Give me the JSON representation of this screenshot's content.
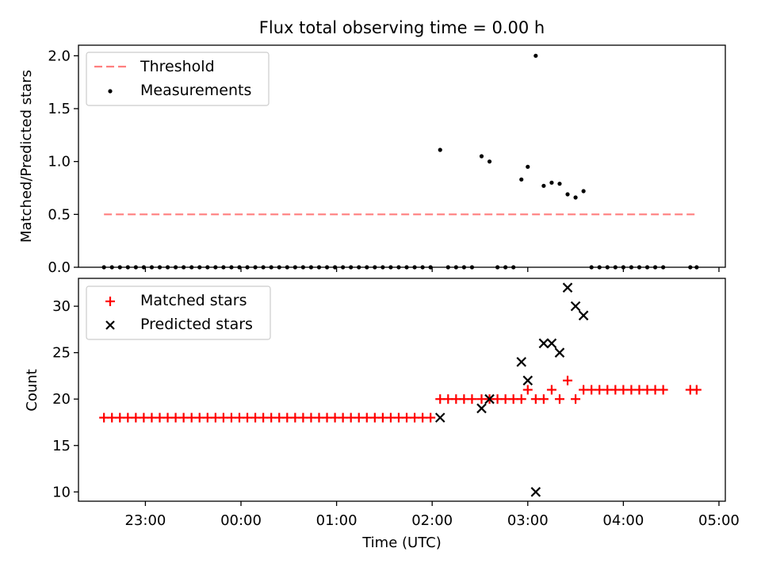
{
  "chart_data": [
    {
      "type": "scatter",
      "panel": "top",
      "title": "Flux total observing time = 0.00 h",
      "xlabel": "",
      "ylabel": "Matched/Predicted stars",
      "ylim": [
        0,
        2.1
      ],
      "yticks": [
        0.0,
        0.5,
        1.0,
        1.5,
        2.0
      ],
      "ytick_labels": [
        "0.0",
        "0.5",
        "1.0",
        "1.5",
        "2.0"
      ],
      "legend": {
        "position": "top-left",
        "entries": [
          "Threshold",
          "Measurements"
        ]
      },
      "threshold": {
        "name": "Threshold",
        "value": 0.5,
        "x_range": [
          "22:34",
          "04:46"
        ],
        "color": "#ff7f7f"
      },
      "series": [
        {
          "name": "Measurements",
          "color": "#000000",
          "points": [
            [
              "22:34",
              0
            ],
            [
              "22:39",
              0
            ],
            [
              "22:44",
              0
            ],
            [
              "22:49",
              0
            ],
            [
              "22:54",
              0
            ],
            [
              "22:59",
              0
            ],
            [
              "23:04",
              0
            ],
            [
              "23:09",
              0
            ],
            [
              "23:14",
              0
            ],
            [
              "23:19",
              0
            ],
            [
              "23:24",
              0
            ],
            [
              "23:29",
              0
            ],
            [
              "23:34",
              0
            ],
            [
              "23:39",
              0
            ],
            [
              "23:44",
              0
            ],
            [
              "23:49",
              0
            ],
            [
              "23:54",
              0
            ],
            [
              "23:59",
              0
            ],
            [
              "00:04",
              0
            ],
            [
              "00:09",
              0
            ],
            [
              "00:14",
              0
            ],
            [
              "00:19",
              0
            ],
            [
              "00:24",
              0
            ],
            [
              "00:29",
              0
            ],
            [
              "00:34",
              0
            ],
            [
              "00:39",
              0
            ],
            [
              "00:44",
              0
            ],
            [
              "00:49",
              0
            ],
            [
              "00:54",
              0
            ],
            [
              "00:59",
              0
            ],
            [
              "01:04",
              0
            ],
            [
              "01:09",
              0
            ],
            [
              "01:14",
              0
            ],
            [
              "01:19",
              0
            ],
            [
              "01:24",
              0
            ],
            [
              "01:29",
              0
            ],
            [
              "01:34",
              0
            ],
            [
              "01:39",
              0
            ],
            [
              "01:44",
              0
            ],
            [
              "01:49",
              0
            ],
            [
              "01:54",
              0
            ],
            [
              "01:59",
              0
            ],
            [
              "02:05",
              1.11
            ],
            [
              "02:10",
              0
            ],
            [
              "02:15",
              0
            ],
            [
              "02:20",
              0
            ],
            [
              "02:25",
              0
            ],
            [
              "02:31",
              1.05
            ],
            [
              "02:36",
              1.0
            ],
            [
              "02:41",
              0
            ],
            [
              "02:46",
              0
            ],
            [
              "02:51",
              0
            ],
            [
              "02:56",
              0.83
            ],
            [
              "03:00",
              0.95
            ],
            [
              "03:05",
              2.0
            ],
            [
              "03:10",
              0.77
            ],
            [
              "03:15",
              0.8
            ],
            [
              "03:20",
              0.79
            ],
            [
              "03:25",
              0.69
            ],
            [
              "03:30",
              0.66
            ],
            [
              "03:35",
              0.72
            ],
            [
              "03:40",
              0
            ],
            [
              "03:45",
              0
            ],
            [
              "03:50",
              0
            ],
            [
              "03:55",
              0
            ],
            [
              "04:00",
              0
            ],
            [
              "04:05",
              0
            ],
            [
              "04:10",
              0
            ],
            [
              "04:15",
              0
            ],
            [
              "04:20",
              0
            ],
            [
              "04:25",
              0
            ],
            [
              "04:42",
              0
            ],
            [
              "04:46",
              0
            ]
          ]
        }
      ]
    },
    {
      "type": "scatter",
      "panel": "bottom",
      "title": "",
      "xlabel": "Time (UTC)",
      "ylabel": "Count",
      "ylim": [
        9,
        33
      ],
      "yticks": [
        10,
        15,
        20,
        25,
        30
      ],
      "ytick_labels": [
        "10",
        "15",
        "20",
        "25",
        "30"
      ],
      "xlim": [
        "22:18",
        "05:04"
      ],
      "xticks": [
        "23:00",
        "00:00",
        "01:00",
        "02:00",
        "03:00",
        "04:00",
        "05:00"
      ],
      "xtick_labels": [
        "23:00",
        "00:00",
        "01:00",
        "02:00",
        "03:00",
        "04:00",
        "05:00"
      ],
      "legend": {
        "position": "top-left",
        "entries": [
          "Matched stars",
          "Predicted stars"
        ]
      },
      "series": [
        {
          "name": "Matched stars",
          "marker": "plus",
          "color": "#ff0000",
          "points": [
            [
              "22:34",
              18
            ],
            [
              "22:39",
              18
            ],
            [
              "22:44",
              18
            ],
            [
              "22:49",
              18
            ],
            [
              "22:54",
              18
            ],
            [
              "22:59",
              18
            ],
            [
              "23:04",
              18
            ],
            [
              "23:09",
              18
            ],
            [
              "23:14",
              18
            ],
            [
              "23:19",
              18
            ],
            [
              "23:24",
              18
            ],
            [
              "23:29",
              18
            ],
            [
              "23:34",
              18
            ],
            [
              "23:39",
              18
            ],
            [
              "23:44",
              18
            ],
            [
              "23:49",
              18
            ],
            [
              "23:54",
              18
            ],
            [
              "23:59",
              18
            ],
            [
              "00:04",
              18
            ],
            [
              "00:09",
              18
            ],
            [
              "00:14",
              18
            ],
            [
              "00:19",
              18
            ],
            [
              "00:24",
              18
            ],
            [
              "00:29",
              18
            ],
            [
              "00:34",
              18
            ],
            [
              "00:39",
              18
            ],
            [
              "00:44",
              18
            ],
            [
              "00:49",
              18
            ],
            [
              "00:54",
              18
            ],
            [
              "00:59",
              18
            ],
            [
              "01:04",
              18
            ],
            [
              "01:09",
              18
            ],
            [
              "01:14",
              18
            ],
            [
              "01:19",
              18
            ],
            [
              "01:24",
              18
            ],
            [
              "01:29",
              18
            ],
            [
              "01:34",
              18
            ],
            [
              "01:39",
              18
            ],
            [
              "01:44",
              18
            ],
            [
              "01:49",
              18
            ],
            [
              "01:54",
              18
            ],
            [
              "01:59",
              18
            ],
            [
              "02:05",
              20
            ],
            [
              "02:10",
              20
            ],
            [
              "02:15",
              20
            ],
            [
              "02:20",
              20
            ],
            [
              "02:25",
              20
            ],
            [
              "02:31",
              20
            ],
            [
              "02:36",
              20
            ],
            [
              "02:41",
              20
            ],
            [
              "02:46",
              20
            ],
            [
              "02:51",
              20
            ],
            [
              "02:56",
              20
            ],
            [
              "03:00",
              21
            ],
            [
              "03:05",
              20
            ],
            [
              "03:10",
              20
            ],
            [
              "03:15",
              21
            ],
            [
              "03:20",
              20
            ],
            [
              "03:25",
              22
            ],
            [
              "03:30",
              20
            ],
            [
              "03:35",
              21
            ],
            [
              "03:40",
              21
            ],
            [
              "03:45",
              21
            ],
            [
              "03:50",
              21
            ],
            [
              "03:55",
              21
            ],
            [
              "04:00",
              21
            ],
            [
              "04:05",
              21
            ],
            [
              "04:10",
              21
            ],
            [
              "04:15",
              21
            ],
            [
              "04:20",
              21
            ],
            [
              "04:25",
              21
            ],
            [
              "04:42",
              21
            ],
            [
              "04:46",
              21
            ]
          ]
        },
        {
          "name": "Predicted stars",
          "marker": "x",
          "color": "#000000",
          "points": [
            [
              "02:05",
              18
            ],
            [
              "02:31",
              19
            ],
            [
              "02:36",
              20
            ],
            [
              "02:56",
              24
            ],
            [
              "03:00",
              22
            ],
            [
              "03:05",
              10
            ],
            [
              "03:10",
              26
            ],
            [
              "03:15",
              26
            ],
            [
              "03:20",
              25
            ],
            [
              "03:25",
              32
            ],
            [
              "03:30",
              30
            ],
            [
              "03:35",
              29
            ]
          ]
        }
      ]
    }
  ]
}
